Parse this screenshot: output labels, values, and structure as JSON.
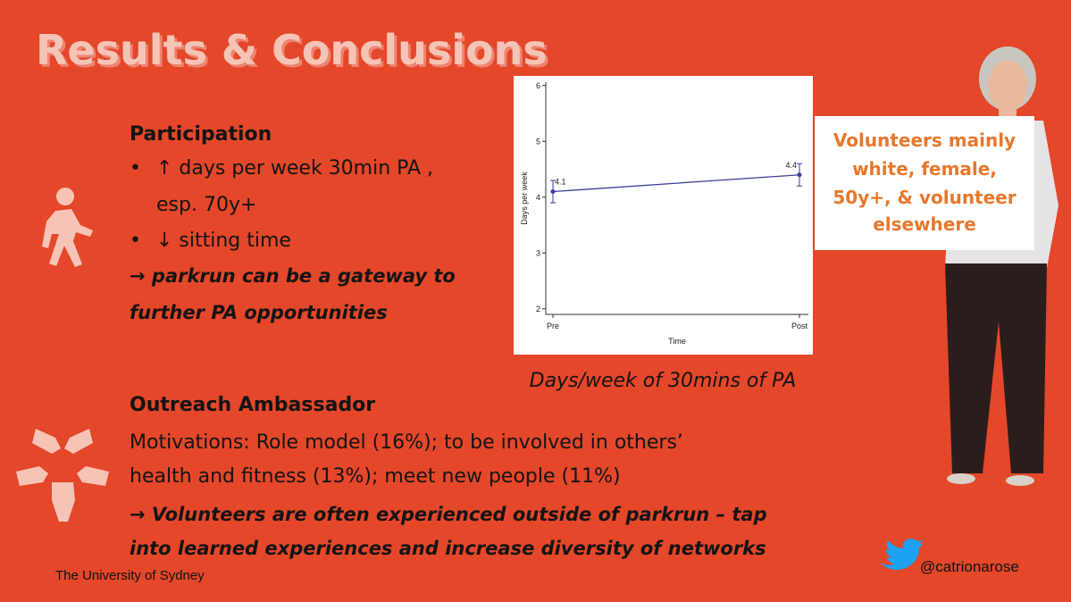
{
  "slide": {
    "title": "Results & Conclusions",
    "participation": {
      "heading": "Participation",
      "bullets": [
        {
          "lines": [
            "↑ days per week 30min PA ,",
            "esp. 70y+"
          ]
        },
        {
          "lines": [
            "↓ sitting time"
          ]
        }
      ],
      "conclusion_lines": [
        "→ parkrun can be a gateway to",
        "further PA opportunities"
      ]
    },
    "chart_caption": "Days/week of 30mins of PA",
    "outreach": {
      "heading": "Outreach Ambassador",
      "motivation_lines": [
        "Motivations: Role model (16%); to be involved in others’",
        "health and fitness (13%); meet new people (11%)"
      ],
      "conclusion_lines": [
        "→ Volunteers are often experienced outside of parkrun – tap",
        "into learned experiences and increase diversity of networks"
      ]
    },
    "sign_lines": [
      "Volunteers mainly",
      "white, female,",
      "50y+, & volunteer",
      "elsewhere"
    ],
    "footer": "The University of Sydney",
    "twitter": "@catrionarose"
  },
  "chart_data": {
    "type": "line",
    "x_label": "Time",
    "y_label": "Days per week",
    "categories": [
      "Pre",
      "Post"
    ],
    "values": [
      4.1,
      4.4
    ],
    "errors": [
      0.2,
      0.2
    ],
    "color": "#3b3b9c",
    "ylim": [
      1.9,
      6.06
    ],
    "yticks": [
      2,
      3,
      4,
      5,
      6
    ],
    "grid": false
  }
}
